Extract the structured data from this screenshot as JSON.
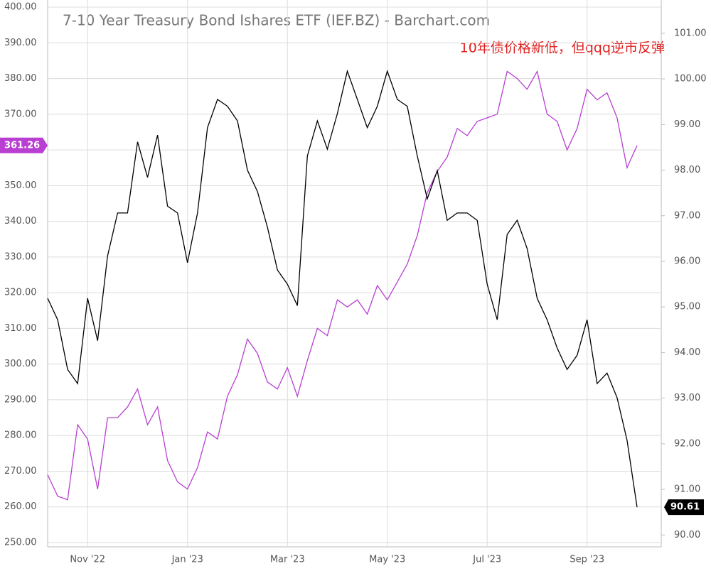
{
  "chart_data": {
    "type": "line",
    "title": "7-10 Year Treasury Bond Ishares ETF (IEF.BZ) - Barchart.com",
    "annotation": "10年债价格新低，但qqq逆市反弹",
    "categories": [
      null,
      null,
      null,
      null,
      "Nov '22",
      null,
      null,
      null,
      null,
      null,
      null,
      null,
      null,
      null,
      "Jan '23",
      null,
      null,
      null,
      null,
      null,
      null,
      null,
      null,
      null,
      "Mar '23",
      null,
      null,
      null,
      null,
      null,
      null,
      null,
      null,
      null,
      "May '23",
      null,
      null,
      null,
      null,
      null,
      null,
      null,
      null,
      null,
      "Jul '23",
      null,
      null,
      null,
      null,
      null,
      null,
      null,
      null,
      null,
      "Sep '23",
      null,
      null,
      null,
      null,
      null
    ],
    "series": [
      {
        "color": "#b83fd1",
        "axis": "y",
        "values": [
          269,
          263,
          262,
          283,
          279,
          265,
          285,
          285,
          288,
          293,
          283,
          288,
          273,
          267,
          265,
          271,
          281,
          279,
          291,
          297,
          307,
          303,
          295,
          293,
          299,
          291,
          301,
          310,
          308,
          318,
          316,
          318,
          314,
          322,
          318,
          323,
          328,
          336,
          348,
          354,
          358,
          366,
          364,
          368,
          369,
          370,
          382,
          380,
          377,
          382,
          370,
          368,
          360,
          366,
          377,
          374,
          376,
          369,
          355,
          361.26
        ]
      },
      {
        "color": "#000000",
        "axis": "y2",
        "values": [
          95.19,
          94.72,
          93.63,
          93.32,
          95.19,
          94.26,
          96.12,
          97.06,
          97.06,
          98.62,
          97.84,
          98.77,
          97.21,
          97.06,
          95.97,
          97.06,
          98.93,
          99.55,
          99.4,
          99.08,
          98.0,
          97.53,
          96.75,
          95.81,
          95.5,
          95.03,
          98.31,
          99.08,
          98.46,
          99.24,
          100.17,
          99.55,
          98.93,
          99.4,
          100.17,
          99.55,
          99.4,
          98.31,
          97.37,
          97.99,
          96.9,
          97.06,
          97.06,
          96.9,
          95.5,
          94.72,
          96.59,
          96.9,
          96.28,
          95.19,
          94.72,
          94.1,
          93.63,
          93.94,
          94.72,
          93.32,
          93.55,
          93.01,
          92.08,
          90.61
        ]
      }
    ],
    "ylim": [
      248.8,
      402
    ],
    "yticks": [
      {
        "value": 250,
        "label": "250.00"
      },
      {
        "value": 260,
        "label": "260.00"
      },
      {
        "value": 270,
        "label": "270.00"
      },
      {
        "value": 280,
        "label": "280.00"
      },
      {
        "value": 290,
        "label": "290.00"
      },
      {
        "value": 300,
        "label": "300.00"
      },
      {
        "value": 310,
        "label": "310.00"
      },
      {
        "value": 320,
        "label": "320.00"
      },
      {
        "value": 330,
        "label": "330.00"
      },
      {
        "value": 340,
        "label": "340.00"
      },
      {
        "value": 350,
        "label": "350.00"
      },
      {
        "value": 360,
        "label": "360.00"
      },
      {
        "value": 370,
        "label": "370.00"
      },
      {
        "value": 380,
        "label": "380.00"
      },
      {
        "value": 390,
        "label": "390.00"
      },
      {
        "value": 400,
        "label": "400.00"
      }
    ],
    "y2lim": [
      89.74,
      101.73
    ],
    "y2ticks": [
      {
        "value": 90,
        "label": "90.00"
      },
      {
        "value": 91,
        "label": "91.00"
      },
      {
        "value": 92,
        "label": "92.00"
      },
      {
        "value": 93,
        "label": "93.00"
      },
      {
        "value": 94,
        "label": "94.00"
      },
      {
        "value": 95,
        "label": "95.00"
      },
      {
        "value": 96,
        "label": "96.00"
      },
      {
        "value": 97,
        "label": "97.00"
      },
      {
        "value": 98,
        "label": "98.00"
      },
      {
        "value": 99,
        "label": "99.00"
      },
      {
        "value": 100,
        "label": "100.00"
      },
      {
        "value": 101,
        "label": "101.00"
      }
    ],
    "grid": true
  }
}
